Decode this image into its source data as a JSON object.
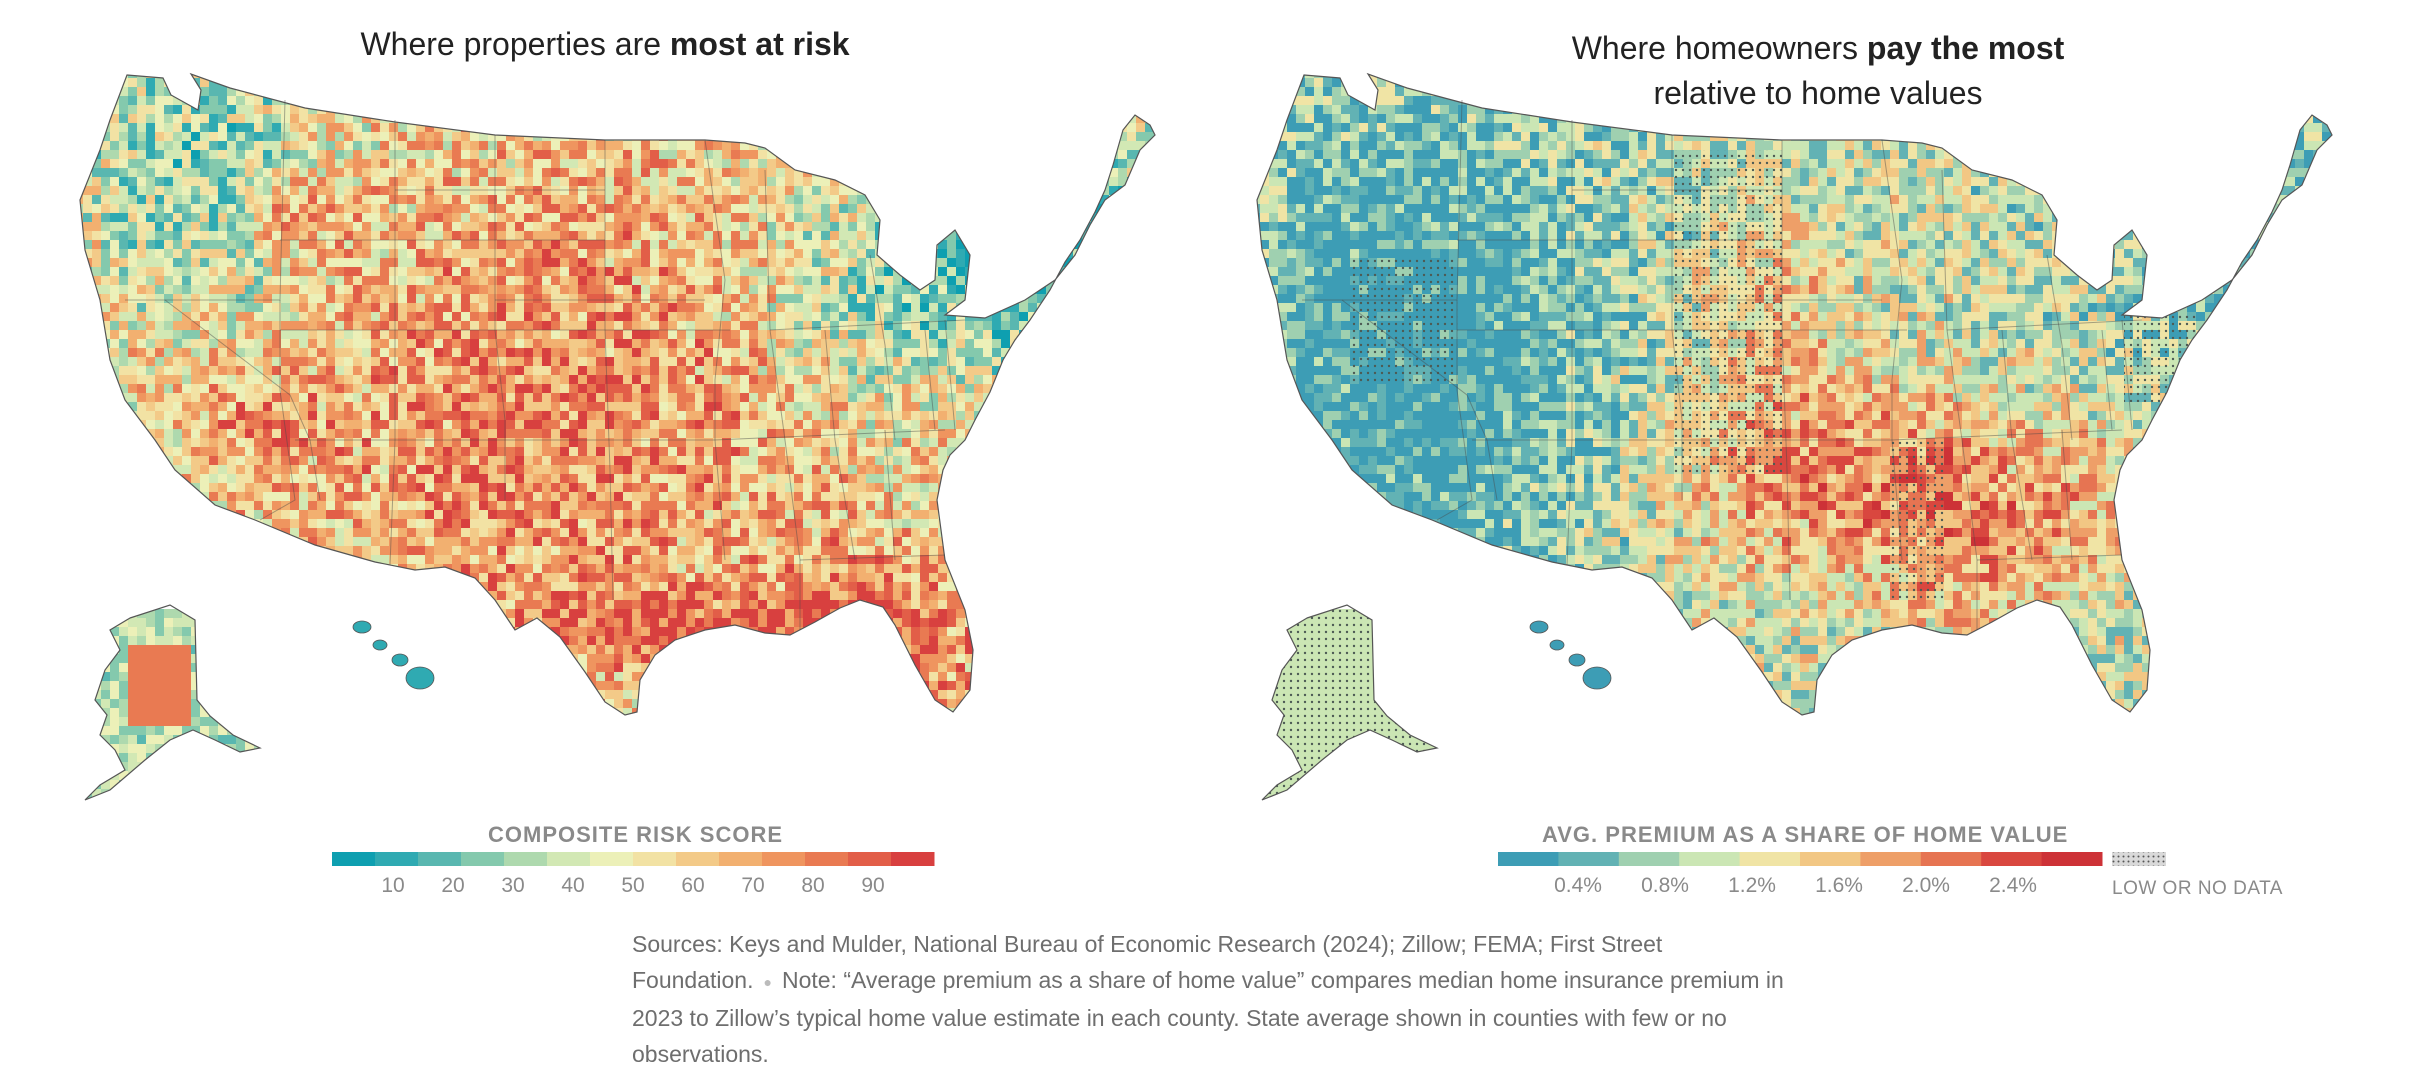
{
  "left_map": {
    "title_prefix": "Where properties are ",
    "title_bold": "most at risk",
    "legend_title": "COMPOSITE RISK SCORE",
    "legend_ticks": [
      "10",
      "20",
      "30",
      "40",
      "50",
      "60",
      "70",
      "80",
      "90"
    ],
    "legend_colors": [
      "#0e9fb0",
      "#2faab2",
      "#59b7b0",
      "#84c9ad",
      "#aed9ae",
      "#d2e8b4",
      "#ecf0b8",
      "#f2e2a4",
      "#f3ca88",
      "#f2b070",
      "#ef955f",
      "#e97a52",
      "#e25e48",
      "#d8403f"
    ]
  },
  "right_map": {
    "title_line1_prefix": "Where homeowners ",
    "title_line1_bold": "pay the most",
    "title_line2": "relative to home values",
    "legend_title": "AVG. PREMIUM AS A SHARE OF HOME VALUE",
    "legend_ticks": [
      "0.4%",
      "0.8%",
      "1.2%",
      "1.6%",
      "2.0%",
      "2.4%"
    ],
    "legend_colors": [
      "#3d9db5",
      "#62b2b4",
      "#9fd0b0",
      "#cbe6b4",
      "#f0e4a5",
      "#f2c784",
      "#ee9f68",
      "#e67452",
      "#d9473f",
      "#cd3237"
    ],
    "nodata_label": "LOW OR NO DATA"
  },
  "notes": {
    "sources": "Sources: Keys and Mulder, National Bureau of Economic Research (2024); Zillow; FEMA; First Street Foundation.",
    "note": "Note: “Average premium as a share of home value” compares median home insurance premium in 2023 to Zillow’s typical home value estimate in each county. State average shown in counties with few or no observations."
  }
}
